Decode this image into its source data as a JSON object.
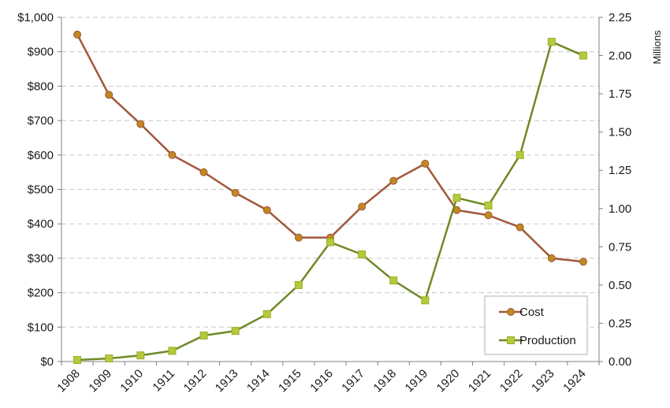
{
  "chart_data": {
    "type": "line",
    "categories": [
      "1908",
      "1909",
      "1910",
      "1911",
      "1912",
      "1913",
      "1914",
      "1915",
      "1916",
      "1917",
      "1918",
      "1919",
      "1920",
      "1921",
      "1922",
      "1923",
      "1924"
    ],
    "series": [
      {
        "name": "Cost",
        "axis": "left",
        "color": "#a0583a",
        "marker_color": "#c08a1e",
        "marker": "circle",
        "values": [
          950,
          775,
          690,
          600,
          550,
          490,
          440,
          360,
          360,
          450,
          525,
          575,
          440,
          425,
          390,
          300,
          290
        ]
      },
      {
        "name": "Production",
        "axis": "right",
        "color": "#6e8a24",
        "marker_color": "#b6c93a",
        "marker": "square",
        "values": [
          0.01,
          0.02,
          0.04,
          0.07,
          0.17,
          0.2,
          0.31,
          0.5,
          0.78,
          0.7,
          0.53,
          0.4,
          1.07,
          1.02,
          1.35,
          2.09,
          2.0
        ]
      }
    ],
    "y_left": {
      "ylim": [
        0,
        1000
      ],
      "ticks": [
        "$0",
        "$100",
        "$200",
        "$300",
        "$400",
        "$500",
        "$600",
        "$700",
        "$800",
        "$900",
        "$1,000"
      ]
    },
    "y_right": {
      "ylim": [
        0,
        2.25
      ],
      "ticks": [
        "0.00",
        "0.25",
        "0.50",
        "0.75",
        "1.00",
        "1.25",
        "1.50",
        "1.75",
        "2.00",
        "2.25"
      ],
      "label": "Millions"
    },
    "grid": true,
    "legend_position": "bottom-right"
  }
}
